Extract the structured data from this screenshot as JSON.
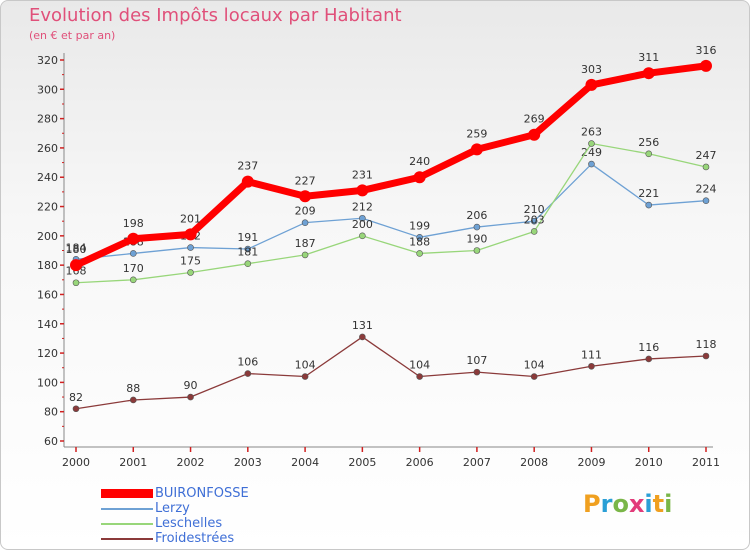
{
  "header": {
    "title": "Evolution des Impôts locaux par Habitant",
    "subtitle": "(en € et par an)"
  },
  "logo": {
    "text": "Proxiti",
    "letters": [
      "P",
      "r",
      "o",
      "x",
      "i",
      "t",
      "i"
    ],
    "colors": [
      "#f0a020",
      "#2a9fd6",
      "#7ab648",
      "#e23b7a",
      "#2a9fd6",
      "#f0a020",
      "#7ab648"
    ]
  },
  "chart_data": {
    "type": "line",
    "title": "Evolution des Impôts locaux par Habitant",
    "subtitle": "(en € et par an)",
    "xlabel": "",
    "ylabel": "",
    "categories": [
      "2000",
      "2001",
      "2002",
      "2003",
      "2004",
      "2005",
      "2006",
      "2007",
      "2008",
      "2009",
      "2010",
      "2011"
    ],
    "ylim": [
      60,
      320
    ],
    "ytick_step": 20,
    "grid": false,
    "legend_position": "bottom-left",
    "series": [
      {
        "name": "BUIRONFOSSE",
        "color": "#ff0000",
        "style": "thick",
        "values": [
          180,
          198,
          201,
          237,
          227,
          231,
          240,
          259,
          269,
          303,
          311,
          316
        ],
        "labels": [
          "180",
          "198",
          "201",
          "237",
          "227",
          "231",
          "240",
          "259",
          "269",
          "303",
          "311",
          "316"
        ]
      },
      {
        "name": "Lerzy",
        "color": "#6ea1d4",
        "style": "thin",
        "values": [
          184,
          188,
          192,
          191,
          209,
          212,
          199,
          206,
          210,
          249,
          221,
          224
        ],
        "labels": [
          "184",
          "188",
          "192",
          "191",
          "209",
          "212",
          "199",
          "206",
          "210",
          "249",
          "221",
          "224"
        ]
      },
      {
        "name": "Leschelles",
        "color": "#98d67a",
        "style": "thin",
        "values": [
          168,
          170,
          175,
          181,
          187,
          200,
          188,
          190,
          203,
          263,
          256,
          247
        ],
        "labels": [
          "168",
          "170",
          "175",
          "181",
          "187",
          "200",
          "188",
          "190",
          "203",
          "263",
          "256",
          "247"
        ]
      },
      {
        "name": "Froidestrées",
        "color": "#8b3a3a",
        "style": "thin",
        "values": [
          82,
          88,
          90,
          106,
          104,
          131,
          104,
          107,
          104,
          111,
          116,
          118
        ],
        "labels": [
          "82",
          "88",
          "90",
          "106",
          "104",
          "131",
          "104",
          "107",
          "104",
          "111",
          "116",
          "118"
        ]
      }
    ]
  }
}
